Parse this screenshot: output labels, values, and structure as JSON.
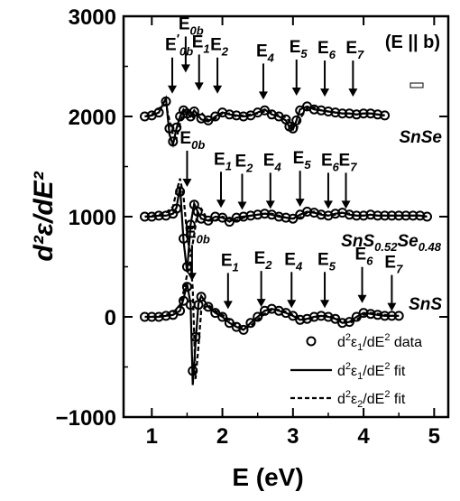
{
  "chart_data": {
    "type": "line",
    "xlabel": "E (eV)",
    "ylabel": "d²ε/dE²",
    "xlim": [
      0.6,
      5.2
    ],
    "ylim": [
      -1000,
      3000
    ],
    "xticks": [
      1,
      2,
      3,
      4,
      5
    ],
    "yticks": [
      -1000,
      0,
      1000,
      2000,
      3000
    ],
    "polarization_label": "(E || b)",
    "legend_position": "bottom-right",
    "legend": {
      "data": "d²ε₁/dE² data",
      "fit1": "d²ε₁/dE² fit",
      "fit2": "d²ε₂/dE² fit"
    },
    "samples": [
      {
        "name": "SnSe",
        "offset": 2000,
        "transitions": [
          {
            "label": "E'0b",
            "energy": 1.29,
            "label_y": 2660
          },
          {
            "label": "E0b",
            "energy": 1.48,
            "label_y": 2870
          },
          {
            "label": "E1",
            "energy": 1.67,
            "label_y": 2690
          },
          {
            "label": "E2",
            "energy": 1.93,
            "label_y": 2660
          },
          {
            "label": "E4",
            "energy": 2.58,
            "label_y": 2600
          },
          {
            "label": "E5",
            "energy": 3.05,
            "label_y": 2640
          },
          {
            "label": "E6",
            "energy": 3.45,
            "label_y": 2630
          },
          {
            "label": "E7",
            "energy": 3.85,
            "label_y": 2630
          }
        ],
        "series": [
          {
            "name": "d²ε₁/dE² data",
            "x": [
              0.9,
              1.0,
              1.1,
              1.2,
              1.25,
              1.3,
              1.35,
              1.4,
              1.45,
              1.5,
              1.55,
              1.6,
              1.7,
              1.8,
              1.9,
              2.0,
              2.1,
              2.2,
              2.3,
              2.4,
              2.5,
              2.6,
              2.7,
              2.8,
              2.9,
              2.95,
              3.0,
              3.05,
              3.1,
              3.2,
              3.3,
              3.4,
              3.5,
              3.6,
              3.7,
              3.8,
              3.9,
              4.0,
              4.1,
              4.2,
              4.3
            ],
            "y": [
              2000,
              2010,
              2040,
              2150,
              1880,
              1750,
              1890,
              2000,
              2060,
              2030,
              2000,
              2050,
              1980,
              1960,
              2000,
              2040,
              2020,
              2010,
              2000,
              2010,
              2040,
              2060,
              2020,
              2000,
              1970,
              1900,
              1880,
              1960,
              2060,
              2100,
              2070,
              2060,
              2050,
              2040,
              2030,
              2030,
              2020,
              2030,
              2030,
              2020,
              2010
            ]
          },
          {
            "name": "d²ε₁/dE² fit",
            "x": [
              0.9,
              1.0,
              1.1,
              1.2,
              1.25,
              1.3,
              1.35,
              1.4,
              1.45,
              1.5,
              1.55,
              1.6,
              1.7,
              1.8,
              1.9,
              2.0,
              2.1,
              2.2,
              2.3,
              2.4,
              2.5,
              2.6,
              2.7,
              2.8,
              2.9,
              2.95,
              3.0,
              3.05,
              3.1,
              3.2,
              3.3,
              3.4,
              3.5,
              3.6,
              3.7,
              3.8,
              3.9,
              4.0,
              4.1,
              4.2,
              4.3
            ],
            "y": [
              2000,
              2010,
              2040,
              2180,
              1820,
              1720,
              1880,
              2000,
              2070,
              2030,
              2000,
              2060,
              1970,
              1950,
              2000,
              2040,
              2020,
              2010,
              2000,
              2010,
              2040,
              2070,
              2020,
              2000,
              1960,
              1890,
              1870,
              1960,
              2070,
              2100,
              2070,
              2060,
              2050,
              2040,
              2030,
              2030,
              2020,
              2030,
              2030,
              2020,
              2010
            ]
          },
          {
            "name": "d²ε₂/dE² fit",
            "x": [
              0.9,
              1.0,
              1.1,
              1.2,
              1.25,
              1.3,
              1.35,
              1.4,
              1.45,
              1.5,
              1.55,
              1.6,
              1.7,
              1.8,
              1.9,
              2.0,
              2.1,
              2.2,
              2.3,
              2.4,
              2.5,
              2.6,
              2.7,
              2.8,
              2.9,
              2.95,
              3.0,
              3.05,
              3.1,
              3.2,
              3.3,
              3.4,
              3.5,
              3.6,
              3.7,
              3.8,
              3.9,
              4.0,
              4.1,
              4.2,
              4.3
            ],
            "y": [
              2000,
              2020,
              2080,
              2120,
              1960,
              1820,
              1780,
              1930,
              2040,
              2080,
              2020,
              1980,
              2040,
              1960,
              1980,
              2030,
              2030,
              2000,
              2010,
              2020,
              2030,
              2050,
              2040,
              2010,
              1990,
              1950,
              1870,
              1870,
              1980,
              2080,
              2090,
              2060,
              2050,
              2040,
              2030,
              2030,
              2020,
              2030,
              2030,
              2020,
              2010
            ]
          }
        ]
      },
      {
        "name": "SnS0.52Se0.48",
        "offset": 1000,
        "transitions": [
          {
            "label": "E0b",
            "energy": 1.5,
            "label_y": 1730
          },
          {
            "label": "E1",
            "energy": 1.98,
            "label_y": 1520
          },
          {
            "label": "E2",
            "energy": 2.28,
            "label_y": 1500
          },
          {
            "label": "E4",
            "energy": 2.68,
            "label_y": 1510
          },
          {
            "label": "E5",
            "energy": 3.1,
            "label_y": 1530
          },
          {
            "label": "E6",
            "energy": 3.5,
            "label_y": 1510
          },
          {
            "label": "E7",
            "energy": 3.75,
            "label_y": 1510
          }
        ],
        "series": [
          {
            "name": "d²ε₁/dE² data",
            "x": [
              0.9,
              1.0,
              1.1,
              1.2,
              1.3,
              1.35,
              1.4,
              1.45,
              1.5,
              1.55,
              1.6,
              1.65,
              1.7,
              1.8,
              1.9,
              2.0,
              2.1,
              2.2,
              2.3,
              2.4,
              2.5,
              2.6,
              2.7,
              2.8,
              2.9,
              3.0,
              3.1,
              3.2,
              3.3,
              3.4,
              3.5,
              3.6,
              3.7,
              3.8,
              3.9,
              4.0,
              4.1,
              4.2,
              4.3,
              4.4,
              4.5,
              4.6,
              4.7,
              4.8,
              4.9
            ],
            "y": [
              1000,
              1000,
              1010,
              1010,
              1030,
              1080,
              1250,
              780,
              500,
              920,
              1120,
              1050,
              980,
              960,
              1000,
              990,
              950,
              990,
              1000,
              1010,
              1020,
              1030,
              1020,
              1000,
              990,
              980,
              1020,
              1050,
              1040,
              1020,
              1010,
              1030,
              1040,
              1020,
              1010,
              1010,
              1020,
              1010,
              1010,
              1010,
              1010,
              1010,
              1010,
              1010,
              1000
            ]
          },
          {
            "name": "d²ε₁/dE² fit",
            "x": [
              0.9,
              1.0,
              1.1,
              1.2,
              1.3,
              1.35,
              1.4,
              1.45,
              1.5,
              1.55,
              1.6,
              1.65,
              1.7,
              1.8,
              1.9,
              2.0,
              2.1,
              2.2,
              2.3,
              2.4,
              2.5,
              2.6,
              2.7,
              2.8,
              2.9,
              3.0,
              3.1,
              3.2,
              3.3,
              3.4,
              3.5,
              3.6,
              3.7,
              3.8,
              3.9,
              4.0,
              4.1,
              4.2,
              4.3,
              4.4,
              4.5,
              4.6,
              4.7,
              4.8,
              4.9
            ],
            "y": [
              1000,
              1000,
              1010,
              1010,
              1030,
              1090,
              1300,
              760,
              450,
              920,
              1130,
              1050,
              980,
              960,
              1000,
              990,
              950,
              990,
              1000,
              1010,
              1020,
              1030,
              1020,
              1000,
              990,
              980,
              1020,
              1050,
              1040,
              1020,
              1010,
              1030,
              1040,
              1020,
              1010,
              1010,
              1020,
              1010,
              1010,
              1010,
              1010,
              1010,
              1010,
              1010,
              1000
            ]
          },
          {
            "name": "d²ε₂/dE² fit",
            "x": [
              0.9,
              1.0,
              1.1,
              1.2,
              1.3,
              1.35,
              1.4,
              1.45,
              1.5,
              1.55,
              1.6,
              1.65,
              1.7,
              1.8,
              1.9,
              2.0,
              2.1,
              2.2,
              2.3,
              2.4,
              2.5,
              2.6,
              2.7,
              2.8,
              2.9,
              3.0,
              3.1,
              3.2,
              3.3,
              3.4,
              3.5,
              3.6,
              3.7,
              3.8,
              3.9,
              4.0,
              4.1,
              4.2,
              4.3,
              4.4,
              4.5,
              4.6,
              4.7,
              4.8,
              4.9
            ],
            "y": [
              1000,
              1010,
              1020,
              1040,
              1100,
              1250,
              1380,
              1200,
              820,
              600,
              820,
              1060,
              1080,
              960,
              960,
              1000,
              980,
              960,
              990,
              1010,
              1020,
              1030,
              1030,
              1010,
              990,
              980,
              990,
              1040,
              1050,
              1030,
              1010,
              1020,
              1040,
              1030,
              1010,
              1010,
              1020,
              1010,
              1010,
              1010,
              1010,
              1010,
              1010,
              1010,
              1000
            ]
          }
        ]
      },
      {
        "name": "SnS",
        "offset": 0,
        "transitions": [
          {
            "label": "E0b",
            "energy": 1.57,
            "label_y": 790
          },
          {
            "label": "E1",
            "energy": 2.08,
            "label_y": 510
          },
          {
            "label": "E2",
            "energy": 2.55,
            "label_y": 530
          },
          {
            "label": "E4",
            "energy": 2.98,
            "label_y": 520
          },
          {
            "label": "E5",
            "energy": 3.45,
            "label_y": 520
          },
          {
            "label": "E6",
            "energy": 3.98,
            "label_y": 570
          },
          {
            "label": "E7",
            "energy": 4.4,
            "label_y": 490
          }
        ],
        "series": [
          {
            "name": "d²ε₁/dE² data",
            "x": [
              0.9,
              1.0,
              1.1,
              1.2,
              1.3,
              1.4,
              1.45,
              1.5,
              1.55,
              1.58,
              1.62,
              1.66,
              1.7,
              1.8,
              1.9,
              2.0,
              2.1,
              2.2,
              2.3,
              2.4,
              2.5,
              2.6,
              2.7,
              2.8,
              2.9,
              3.0,
              3.1,
              3.2,
              3.3,
              3.4,
              3.5,
              3.6,
              3.7,
              3.8,
              3.9,
              4.0,
              4.1,
              4.2,
              4.3,
              4.4,
              4.5
            ],
            "y": [
              0,
              0,
              0,
              10,
              20,
              60,
              160,
              300,
              120,
              -540,
              -200,
              120,
              200,
              100,
              40,
              0,
              -60,
              -100,
              -130,
              -60,
              0,
              60,
              80,
              60,
              40,
              10,
              -30,
              -20,
              0,
              10,
              0,
              -20,
              -60,
              -50,
              0,
              40,
              30,
              20,
              10,
              10,
              10
            ]
          },
          {
            "name": "d²ε₁/dE² fit",
            "x": [
              0.9,
              1.0,
              1.1,
              1.2,
              1.3,
              1.4,
              1.45,
              1.5,
              1.55,
              1.58,
              1.62,
              1.66,
              1.7,
              1.8,
              1.9,
              2.0,
              2.1,
              2.2,
              2.3,
              2.4,
              2.5,
              2.6,
              2.7,
              2.8,
              2.9,
              3.0,
              3.1,
              3.2,
              3.3,
              3.4,
              3.5,
              3.6,
              3.7,
              3.8,
              3.9,
              4.0,
              4.1,
              4.2,
              4.3,
              4.4,
              4.5
            ],
            "y": [
              0,
              0,
              0,
              10,
              20,
              60,
              180,
              330,
              130,
              -680,
              -260,
              130,
              210,
              100,
              40,
              0,
              -60,
              -100,
              -130,
              -60,
              0,
              60,
              80,
              60,
              40,
              10,
              -30,
              -20,
              0,
              10,
              0,
              -20,
              -60,
              -50,
              0,
              40,
              30,
              20,
              10,
              10,
              10
            ]
          },
          {
            "name": "d²ε₂/dE² fit",
            "x": [
              0.9,
              1.0,
              1.1,
              1.2,
              1.3,
              1.4,
              1.45,
              1.5,
              1.55,
              1.58,
              1.62,
              1.66,
              1.7,
              1.8,
              1.9,
              2.0,
              2.1,
              2.2,
              2.3,
              2.4,
              2.5,
              2.6,
              2.7,
              2.8,
              2.9,
              3.0,
              3.1,
              3.2,
              3.3,
              3.4,
              3.5,
              3.6,
              3.7,
              3.8,
              3.9,
              4.0,
              4.1,
              4.2,
              4.3,
              4.4,
              4.5
            ],
            "y": [
              0,
              0,
              10,
              20,
              40,
              120,
              250,
              420,
              560,
              280,
              -620,
              -300,
              60,
              120,
              60,
              20,
              -30,
              -80,
              -120,
              -90,
              -30,
              30,
              70,
              70,
              50,
              20,
              -20,
              -30,
              -10,
              10,
              10,
              -10,
              -40,
              -60,
              -30,
              20,
              40,
              30,
              20,
              10,
              10
            ]
          }
        ]
      }
    ]
  }
}
